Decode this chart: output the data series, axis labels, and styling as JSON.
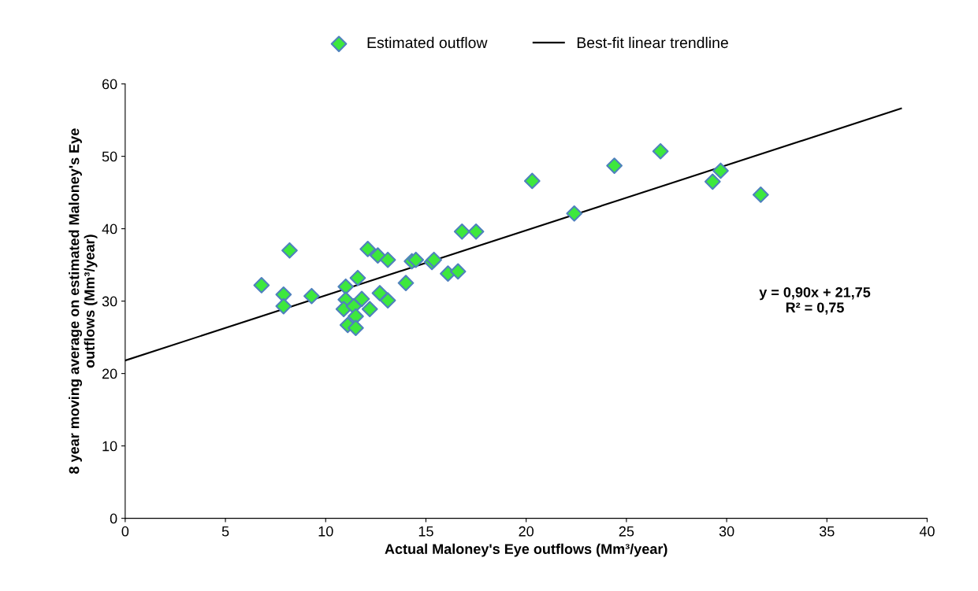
{
  "chart_data": {
    "type": "scatter",
    "xlabel": "Actual Maloney's Eye outflows (Mm³/year)",
    "ylabel": "8 year moving average on estimated Maloney's Eye\noutflows (Mm³/year)",
    "xlim": [
      0,
      40
    ],
    "xticks": [
      0,
      5,
      10,
      15,
      20,
      25,
      30,
      35,
      40
    ],
    "ylim": [
      0,
      60
    ],
    "yticks": [
      0,
      10,
      20,
      30,
      40,
      50,
      60
    ],
    "grid": false,
    "legend": "top",
    "annotations": [
      "y = 0,90x + 21,75\nR² = 0,75"
    ],
    "series": [
      {
        "name": "Estimated outflow",
        "marker": "diamond",
        "color": "#3de83d",
        "x": [
          6.8,
          7.9,
          7.9,
          8.2,
          9.3,
          11.0,
          11.6,
          11.0,
          11.8,
          10.9,
          11.4,
          11.5,
          11.1,
          11.5,
          12.2,
          12.7,
          13.1,
          12.1,
          12.6,
          13.1,
          14.0,
          14.3,
          14.5,
          15.3,
          15.4,
          16.1,
          16.6,
          16.8,
          17.5,
          20.3,
          22.4,
          24.4,
          26.7,
          29.3,
          29.7,
          31.7
        ],
        "values": [
          32.2,
          30.9,
          29.3,
          37.0,
          30.7,
          32.0,
          33.2,
          30.2,
          30.3,
          28.9,
          29.3,
          27.9,
          26.7,
          26.3,
          28.9,
          31.1,
          30.1,
          37.2,
          36.3,
          35.7,
          32.5,
          35.5,
          35.7,
          35.4,
          35.7,
          33.8,
          34.1,
          39.6,
          39.6,
          46.6,
          42.1,
          48.7,
          50.7,
          46.5,
          48.0,
          44.7
        ]
      },
      {
        "name": "Best-fit linear trendline",
        "type": "line",
        "marker": "none",
        "color": "#000000",
        "x": [
          0,
          38.7
        ],
        "values": [
          21.8,
          56.6
        ]
      }
    ]
  }
}
